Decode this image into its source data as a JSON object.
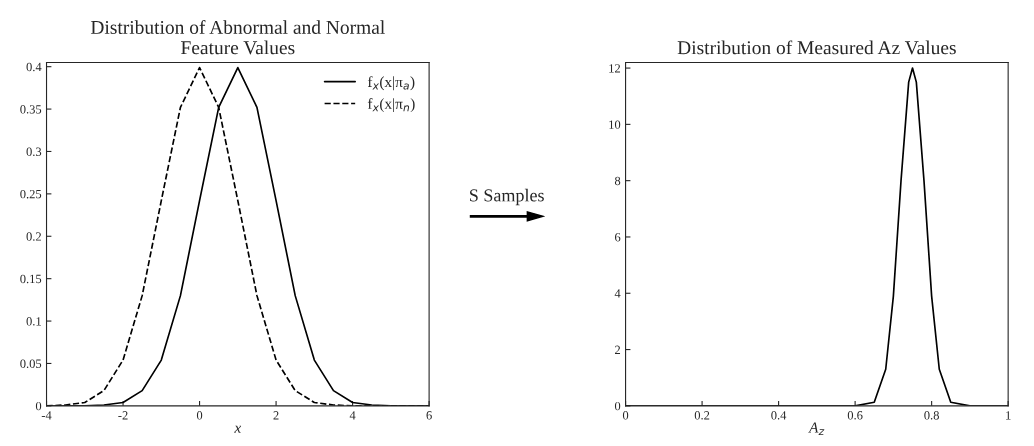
{
  "chart_data": [
    {
      "type": "line",
      "title": "Distribution of Abnormal and Normal\nFeature Values",
      "xlabel": "x",
      "xlim": [
        -4,
        6
      ],
      "xticks": [
        -4,
        -2,
        0,
        2,
        4,
        6
      ],
      "ylim": [
        0,
        0.405
      ],
      "yticks": [
        0,
        0.05,
        0.1,
        0.15,
        0.2,
        0.25,
        0.3,
        0.35,
        0.4
      ],
      "grid": false,
      "legend": "top right",
      "annotations": [
        "S Samples"
      ],
      "x": [
        -4,
        -3.5,
        -3,
        -2.5,
        -2,
        -1.5,
        -1,
        -0.5,
        0,
        0.5,
        1,
        1.5,
        2,
        2.5,
        3,
        3.5,
        4,
        4.5,
        5,
        5.5,
        6
      ],
      "series": [
        {
          "name": "f$_{x}$(x|π$_{a}$)",
          "color": "#000000",
          "line_style": "solid",
          "values": [
            0,
            0,
            0,
            0.001,
            0.004,
            0.018,
            0.054,
            0.13,
            0.242,
            0.352,
            0.399,
            0.352,
            0.242,
            0.13,
            0.054,
            0.018,
            0.004,
            0.001,
            0,
            0,
            0
          ]
        },
        {
          "name": "f$_{x}$(x|π$_{n}$)",
          "color": "#000000",
          "line_style": "dashed",
          "values": [
            0,
            0.001,
            0.004,
            0.018,
            0.054,
            0.13,
            0.242,
            0.352,
            0.399,
            0.352,
            0.242,
            0.13,
            0.054,
            0.018,
            0.004,
            0.001,
            0,
            0,
            0,
            0,
            0
          ]
        }
      ]
    },
    {
      "type": "line",
      "title": "Distribution of Measured Az Values",
      "xlabel": "A$_{z}$",
      "xlim": [
        0,
        1
      ],
      "xticks": [
        0,
        0.2,
        0.4,
        0.6,
        0.8,
        1
      ],
      "ylim": [
        0,
        12.2
      ],
      "yticks": [
        0,
        2,
        4,
        6,
        8,
        10,
        12
      ],
      "grid": false,
      "legend": false,
      "x": [
        0,
        0.6,
        0.65,
        0.68,
        0.7,
        0.72,
        0.74,
        0.75,
        0.76,
        0.78,
        0.8,
        0.82,
        0.85,
        0.9,
        1
      ],
      "series": [
        {
          "color": "#000000",
          "line_style": "solid",
          "values": [
            0,
            0,
            0.13,
            1.3,
            3.9,
            8.0,
            11.5,
            12,
            11.5,
            8.0,
            3.9,
            1.3,
            0.13,
            0,
            0
          ]
        }
      ]
    }
  ]
}
